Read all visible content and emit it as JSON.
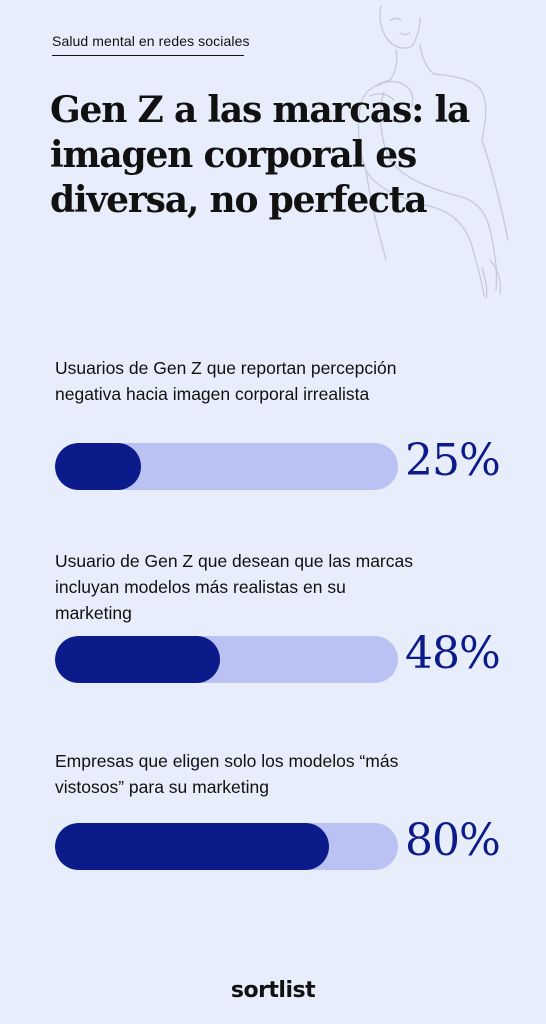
{
  "header": {
    "tag": "Salud mental en redes sociales",
    "title": "Gen Z a las marcas: la imagen corporal es diversa, no perfecta"
  },
  "chart_data": {
    "type": "bar",
    "orientation": "horizontal",
    "categories": [
      "Usuarios de Gen Z que reportan percepción negativa hacia imagen corporal irrealista",
      "Usuario de Gen Z que desean que las marcas incluyan modelos más realistas en su marketing",
      "Empresas que eligen solo los modelos “más vistosos” para su marketing"
    ],
    "values": [
      25,
      48,
      80
    ],
    "value_labels": [
      "25%",
      "48%",
      "80%"
    ],
    "xlim": [
      0,
      100
    ],
    "colors": {
      "fill": "#0c1b8a",
      "track": "#b9c2f3",
      "background": "#e8edfb"
    }
  },
  "brand": "sortlist",
  "decoration": {
    "figure": "line-drawing-woman-icon"
  }
}
